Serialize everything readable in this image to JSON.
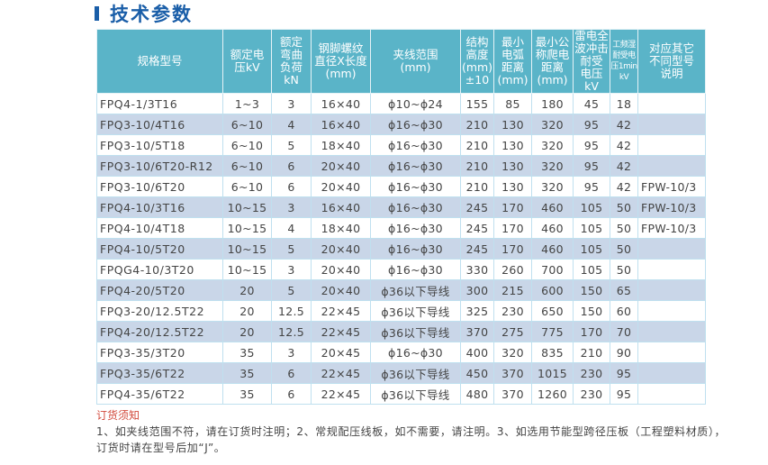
{
  "section": {
    "title": "技术参数",
    "accent_color": "#1a5ea8"
  },
  "table": {
    "header_color": "#5ab4c8",
    "alt_row_color": "#c9d6e8",
    "columns": [
      "规格型号",
      "额定电压kV",
      "额定弯曲负荷kN",
      "钢脚螺纹直径X长度(mm)",
      "夹线范围(mm)",
      "结构高度(mm)±10",
      "最小电弧距离(mm)",
      "最小公称爬电距离(mm)",
      "雷电全波冲击耐受电压kV",
      "工频湿耐受电压1min kV",
      "对应其它不同型号说明"
    ],
    "rows": [
      {
        "model": "FPQ4-1/3T16",
        "voltage": "1~3",
        "load": "3",
        "thread": "16×40",
        "clamp": "ϕ10~ϕ24",
        "height": "155",
        "arc": "85",
        "creep": "180",
        "impulse": "45",
        "wet": "18",
        "note": ""
      },
      {
        "model": "FPQ3-10/4T16",
        "voltage": "6~10",
        "load": "4",
        "thread": "16×40",
        "clamp": "ϕ16~ϕ30",
        "height": "210",
        "arc": "130",
        "creep": "320",
        "impulse": "95",
        "wet": "42",
        "note": ""
      },
      {
        "model": "FPQ3-10/5T18",
        "voltage": "6~10",
        "load": "5",
        "thread": "18×40",
        "clamp": "ϕ16~ϕ30",
        "height": "210",
        "arc": "130",
        "creep": "320",
        "impulse": "95",
        "wet": "42",
        "note": ""
      },
      {
        "model": "FPQ3-10/6T20-R12",
        "voltage": "6~10",
        "load": "6",
        "thread": "20×40",
        "clamp": "ϕ16~ϕ30",
        "height": "210",
        "arc": "130",
        "creep": "320",
        "impulse": "95",
        "wet": "42",
        "note": ""
      },
      {
        "model": "FPQ3-10/6T20",
        "voltage": "6~10",
        "load": "6",
        "thread": "20×40",
        "clamp": "ϕ16~ϕ30",
        "height": "210",
        "arc": "130",
        "creep": "320",
        "impulse": "95",
        "wet": "42",
        "note": "FPW-10/3"
      },
      {
        "model": "FPQ4-10/3T16",
        "voltage": "10~15",
        "load": "3",
        "thread": "16×40",
        "clamp": "ϕ16~ϕ30",
        "height": "245",
        "arc": "170",
        "creep": "460",
        "impulse": "105",
        "wet": "50",
        "note": "FPW-10/3"
      },
      {
        "model": "FPQ4-10/4T18",
        "voltage": "10~15",
        "load": "4",
        "thread": "18×40",
        "clamp": "ϕ16~ϕ30",
        "height": "245",
        "arc": "170",
        "creep": "460",
        "impulse": "105",
        "wet": "50",
        "note": "FPW-10/3"
      },
      {
        "model": "FPQ4-10/5T20",
        "voltage": "10~15",
        "load": "5",
        "thread": "20×40",
        "clamp": "ϕ16~ϕ30",
        "height": "245",
        "arc": "170",
        "creep": "460",
        "impulse": "105",
        "wet": "50",
        "note": ""
      },
      {
        "model": "FPQG4-10/3T20",
        "voltage": "10~15",
        "load": "3",
        "thread": "20×40",
        "clamp": "ϕ16~ϕ30",
        "height": "330",
        "arc": "260",
        "creep": "700",
        "impulse": "105",
        "wet": "50",
        "note": ""
      },
      {
        "model": "FPQ4-20/5T20",
        "voltage": "20",
        "load": "5",
        "thread": "20×40",
        "clamp": "ϕ36以下导线",
        "height": "300",
        "arc": "215",
        "creep": "600",
        "impulse": "150",
        "wet": "65",
        "note": ""
      },
      {
        "model": "FPQ3-20/12.5T22",
        "voltage": "20",
        "load": "12.5",
        "thread": "22×45",
        "clamp": "ϕ36以下导线",
        "height": "325",
        "arc": "230",
        "creep": "650",
        "impulse": "150",
        "wet": "60",
        "note": ""
      },
      {
        "model": "FPQ4-20/12.5T22",
        "voltage": "20",
        "load": "12.5",
        "thread": "22×45",
        "clamp": "ϕ36以下导线",
        "height": "370",
        "arc": "275",
        "creep": "775",
        "impulse": "170",
        "wet": "70",
        "note": ""
      },
      {
        "model": "FPQ3-35/3T20",
        "voltage": "35",
        "load": "3",
        "thread": "20×45",
        "clamp": "ϕ16~ϕ30",
        "height": "400",
        "arc": "320",
        "creep": "835",
        "impulse": "210",
        "wet": "90",
        "note": ""
      },
      {
        "model": "FPQ3-35/6T22",
        "voltage": "35",
        "load": "6",
        "thread": "22×45",
        "clamp": "ϕ36以下导线",
        "height": "450",
        "arc": "370",
        "creep": "1015",
        "impulse": "230",
        "wet": "95",
        "note": ""
      },
      {
        "model": "FPQ4-35/6T22",
        "voltage": "35",
        "load": "6",
        "thread": "22×45",
        "clamp": "ϕ36以下导线",
        "height": "480",
        "arc": "370",
        "creep": "1260",
        "impulse": "230",
        "wet": "95",
        "note": ""
      }
    ]
  },
  "notes": {
    "title": "订货须知",
    "title_color": "#d24a3c",
    "body": "1、如夹线范围不符，请在订货时注明；2、常规配压线板，如不需要，请注明。3、如选用节能型跨径压板（工程塑料材质），订货时请在型号后加“J”。"
  }
}
